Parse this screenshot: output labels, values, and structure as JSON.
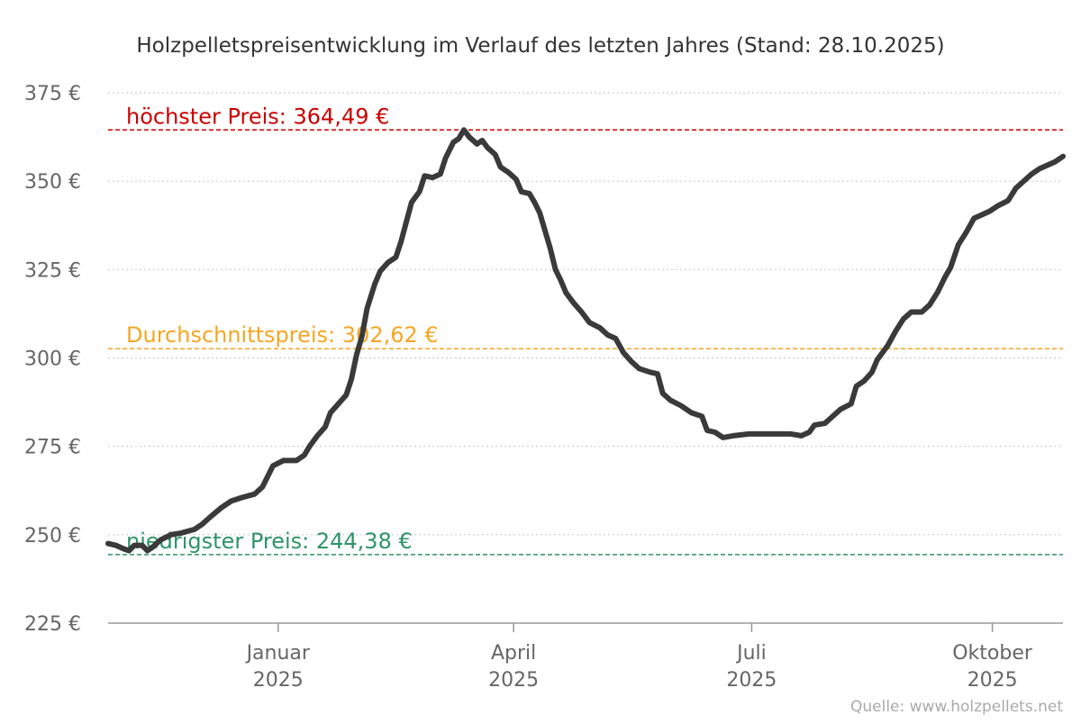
{
  "chart_data": {
    "type": "line",
    "title": "Holzpelletspreisentwicklung im Verlauf des letzten Jahres (Stand: 28.10.2025)",
    "xlabel": "",
    "ylabel": "",
    "ylim": [
      225,
      375
    ],
    "y_ticks": [
      225,
      250,
      275,
      300,
      325,
      350,
      375
    ],
    "y_tick_suffix": " €",
    "grid": true,
    "x_range": [
      "2024-10-28",
      "2025-10-28"
    ],
    "x_ticks": [
      {
        "date": "2025-01-01",
        "month": "Januar",
        "year": "2025"
      },
      {
        "date": "2025-04-01",
        "month": "April",
        "year": "2025"
      },
      {
        "date": "2025-07-01",
        "month": "Juli",
        "year": "2025"
      },
      {
        "date": "2025-10-01",
        "month": "Oktober",
        "year": "2025"
      }
    ],
    "reference_lines": [
      {
        "id": "max",
        "label": "höchster Preis: 364,49 €",
        "value": 364.49,
        "color": "#cc0000"
      },
      {
        "id": "avg",
        "label": "Durchschnittspreis: 302,62 €",
        "value": 302.62,
        "color": "#f5a623"
      },
      {
        "id": "min",
        "label": "niedrigster Preis: 244,38 €",
        "value": 244.38,
        "color": "#2e9467"
      }
    ],
    "series": [
      {
        "color": "#3a3a3a",
        "points": [
          [
            "2024-10-28",
            247.5
          ],
          [
            "2024-10-31",
            247.0
          ],
          [
            "2024-11-03",
            246.0
          ],
          [
            "2024-11-05",
            245.5
          ],
          [
            "2024-11-07",
            247.0
          ],
          [
            "2024-11-10",
            247.0
          ],
          [
            "2024-11-12",
            245.5
          ],
          [
            "2024-11-14",
            246.5
          ],
          [
            "2024-11-17",
            248.5
          ],
          [
            "2024-11-21",
            250.0
          ],
          [
            "2024-11-25",
            250.5
          ],
          [
            "2024-11-30",
            251.5
          ],
          [
            "2024-12-03",
            253.0
          ],
          [
            "2024-12-06",
            255.0
          ],
          [
            "2024-12-10",
            257.5
          ],
          [
            "2024-12-14",
            259.5
          ],
          [
            "2024-12-18",
            260.5
          ],
          [
            "2024-12-23",
            261.5
          ],
          [
            "2024-12-26",
            263.5
          ],
          [
            "2024-12-28",
            266.5
          ],
          [
            "2024-12-30",
            269.5
          ],
          [
            "2025-01-03",
            271.0
          ],
          [
            "2025-01-08",
            271.0
          ],
          [
            "2025-01-11",
            272.5
          ],
          [
            "2025-01-13",
            275.0
          ],
          [
            "2025-01-16",
            278.0
          ],
          [
            "2025-01-19",
            280.5
          ],
          [
            "2025-01-21",
            284.5
          ],
          [
            "2025-01-24",
            287.0
          ],
          [
            "2025-01-27",
            289.5
          ],
          [
            "2025-01-29",
            294.0
          ],
          [
            "2025-01-31",
            301.0
          ],
          [
            "2025-02-02",
            306.0
          ],
          [
            "2025-02-04",
            314.0
          ],
          [
            "2025-02-07",
            321.0
          ],
          [
            "2025-02-09",
            324.5
          ],
          [
            "2025-02-12",
            327.0
          ],
          [
            "2025-02-15",
            328.5
          ],
          [
            "2025-02-17",
            333.0
          ],
          [
            "2025-02-19",
            338.5
          ],
          [
            "2025-02-21",
            344.0
          ],
          [
            "2025-02-24",
            347.0
          ],
          [
            "2025-02-26",
            351.5
          ],
          [
            "2025-03-01",
            351.0
          ],
          [
            "2025-03-04",
            352.0
          ],
          [
            "2025-03-06",
            356.5
          ],
          [
            "2025-03-09",
            361.0
          ],
          [
            "2025-03-11",
            362.0
          ],
          [
            "2025-03-13",
            364.49
          ],
          [
            "2025-03-15",
            362.5
          ],
          [
            "2025-03-18",
            360.5
          ],
          [
            "2025-03-20",
            361.5
          ],
          [
            "2025-03-22",
            359.5
          ],
          [
            "2025-03-25",
            357.5
          ],
          [
            "2025-03-27",
            354.0
          ],
          [
            "2025-03-30",
            352.5
          ],
          [
            "2025-04-02",
            350.5
          ],
          [
            "2025-04-04",
            347.0
          ],
          [
            "2025-04-07",
            346.5
          ],
          [
            "2025-04-09",
            344.0
          ],
          [
            "2025-04-11",
            341.0
          ],
          [
            "2025-04-13",
            336.0
          ],
          [
            "2025-04-15",
            331.0
          ],
          [
            "2025-04-17",
            325.0
          ],
          [
            "2025-04-19",
            322.0
          ],
          [
            "2025-04-21",
            318.5
          ],
          [
            "2025-04-24",
            315.5
          ],
          [
            "2025-04-27",
            313.0
          ],
          [
            "2025-04-30",
            310.0
          ],
          [
            "2025-05-04",
            308.5
          ],
          [
            "2025-05-07",
            306.5
          ],
          [
            "2025-05-10",
            305.5
          ],
          [
            "2025-05-13",
            301.5
          ],
          [
            "2025-05-16",
            299.0
          ],
          [
            "2025-05-19",
            297.0
          ],
          [
            "2025-05-23",
            296.0
          ],
          [
            "2025-05-26",
            295.5
          ],
          [
            "2025-05-28",
            290.0
          ],
          [
            "2025-05-31",
            288.0
          ],
          [
            "2025-06-04",
            286.5
          ],
          [
            "2025-06-08",
            284.5
          ],
          [
            "2025-06-12",
            283.5
          ],
          [
            "2025-06-14",
            279.5
          ],
          [
            "2025-06-17",
            279.0
          ],
          [
            "2025-06-20",
            277.5
          ],
          [
            "2025-06-24",
            278.0
          ],
          [
            "2025-06-30",
            278.5
          ],
          [
            "2025-07-06",
            278.5
          ],
          [
            "2025-07-12",
            278.5
          ],
          [
            "2025-07-16",
            278.5
          ],
          [
            "2025-07-20",
            278.0
          ],
          [
            "2025-07-23",
            279.0
          ],
          [
            "2025-07-25",
            281.0
          ],
          [
            "2025-07-29",
            281.5
          ],
          [
            "2025-08-01",
            283.5
          ],
          [
            "2025-08-04",
            285.5
          ],
          [
            "2025-08-08",
            287.0
          ],
          [
            "2025-08-10",
            292.0
          ],
          [
            "2025-08-13",
            293.5
          ],
          [
            "2025-08-16",
            296.0
          ],
          [
            "2025-08-18",
            299.5
          ],
          [
            "2025-08-22",
            303.5
          ],
          [
            "2025-08-25",
            307.5
          ],
          [
            "2025-08-28",
            311.0
          ],
          [
            "2025-08-31",
            313.0
          ],
          [
            "2025-09-04",
            313.0
          ],
          [
            "2025-09-07",
            315.0
          ],
          [
            "2025-09-10",
            318.5
          ],
          [
            "2025-09-13",
            323.0
          ],
          [
            "2025-09-15",
            325.5
          ],
          [
            "2025-09-18",
            332.0
          ],
          [
            "2025-09-21",
            335.5
          ],
          [
            "2025-09-24",
            339.5
          ],
          [
            "2025-09-27",
            340.5
          ],
          [
            "2025-09-30",
            341.5
          ],
          [
            "2025-10-03",
            343.0
          ],
          [
            "2025-10-07",
            344.5
          ],
          [
            "2025-10-10",
            348.0
          ],
          [
            "2025-10-13",
            350.0
          ],
          [
            "2025-10-16",
            352.0
          ],
          [
            "2025-10-19",
            353.5
          ],
          [
            "2025-10-22",
            354.5
          ],
          [
            "2025-10-25",
            355.5
          ],
          [
            "2025-10-28",
            357.0
          ]
        ]
      }
    ],
    "source": "Quelle: www.holzpellets.net"
  },
  "colors": {
    "grid": "#cccccc",
    "axis": "#999999",
    "tick_text": "#666666",
    "title_text": "#333333",
    "source_text": "#aaaaaa",
    "line": "#3a3a3a"
  }
}
